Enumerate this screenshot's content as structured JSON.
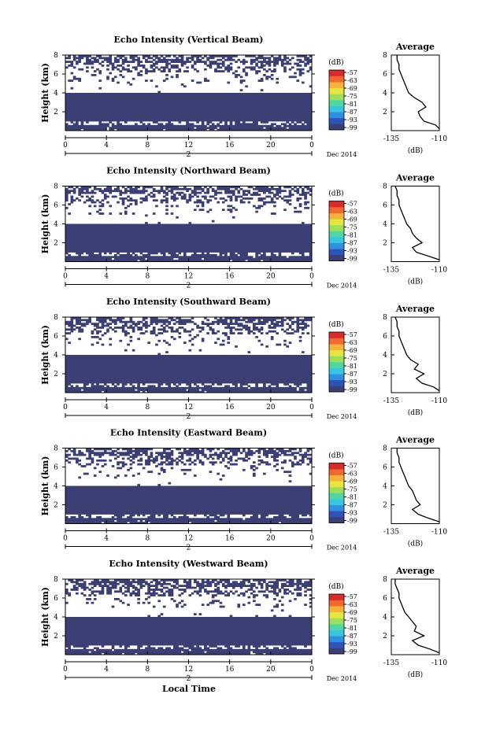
{
  "figure": {
    "xlabel": "Local Time",
    "colorbar_unit": "(dB)",
    "date_label": "Dec 2014",
    "day_label": "2",
    "avg_title": "Average",
    "avg_xlabel": "(dB)"
  },
  "colors": {
    "dominant_fill": "#3b3f74",
    "colormap": [
      "#3b3f74",
      "#2f54b8",
      "#2f8fe0",
      "#35c7e0",
      "#4fd6a3",
      "#9be05a",
      "#e6e640",
      "#f5b23a",
      "#f06a2f",
      "#d92b2b"
    ]
  },
  "chart_data": [
    {
      "type": "heatmap",
      "title": "Echo Intensity (Vertical Beam)",
      "ylabel": "Height (km)",
      "xlim": [
        0,
        24
      ],
      "ylim": [
        0,
        8
      ],
      "xticks": [
        "0",
        "4",
        "8",
        "12",
        "16",
        "20",
        "0"
      ],
      "yticks": [
        "2",
        "4",
        "6",
        "8"
      ],
      "colorbar": {
        "ticks": [
          "-57",
          "-63",
          "-69",
          "-75",
          "-81",
          "-87",
          "-93",
          "-99"
        ],
        "range": [
          -99,
          -57
        ]
      },
      "average_profile": {
        "xlim": [
          -135,
          -110
        ],
        "xticks": [
          "-135",
          "-110"
        ],
        "yticks": [
          "2",
          "4",
          "6",
          "8"
        ],
        "height_km": [
          0.2,
          0.6,
          1.0,
          1.5,
          2.0,
          2.5,
          3.0,
          3.5,
          4.0,
          4.5,
          5.0,
          5.5,
          6.0,
          6.5,
          7.0,
          7.5,
          8.0
        ],
        "intensity_db": [
          -110,
          -112,
          -118,
          -120,
          -121,
          -117,
          -119,
          -123,
          -126,
          -127,
          -128,
          -129,
          -130,
          -131,
          -131,
          -132,
          -132
        ]
      }
    },
    {
      "type": "heatmap",
      "title": "Echo Intensity (Northward Beam)",
      "ylabel": "Height (km)",
      "xlim": [
        0,
        24
      ],
      "ylim": [
        0,
        8
      ],
      "xticks": [
        "0",
        "4",
        "8",
        "12",
        "16",
        "20",
        "0"
      ],
      "yticks": [
        "2",
        "4",
        "6",
        "8"
      ],
      "colorbar": {
        "ticks": [
          "-57",
          "-63",
          "-69",
          "-75",
          "-81",
          "-87",
          "-93",
          "-99"
        ],
        "range": [
          -99,
          -57
        ]
      },
      "average_profile": {
        "xlim": [
          -135,
          -110
        ],
        "xticks": [
          "-135",
          "-110"
        ],
        "yticks": [
          "2",
          "4",
          "6",
          "8"
        ],
        "height_km": [
          0.2,
          0.6,
          1.0,
          1.5,
          2.0,
          2.5,
          3.0,
          3.5,
          4.0,
          4.5,
          5.0,
          5.5,
          6.0,
          6.5,
          7.0,
          7.5,
          8.0
        ],
        "intensity_db": [
          -110,
          -116,
          -122,
          -124,
          -119,
          -122,
          -124,
          -125,
          -127,
          -128,
          -129,
          -130,
          -131,
          -131,
          -132,
          -132,
          -133
        ]
      }
    },
    {
      "type": "heatmap",
      "title": "Echo Intensity (Southward Beam)",
      "ylabel": "Height (km)",
      "xlim": [
        0,
        24
      ],
      "ylim": [
        0,
        8
      ],
      "xticks": [
        "0",
        "4",
        "8",
        "12",
        "16",
        "20",
        "0"
      ],
      "yticks": [
        "2",
        "4",
        "6",
        "8"
      ],
      "colorbar": {
        "ticks": [
          "-57",
          "-63",
          "-69",
          "-75",
          "-81",
          "-87",
          "-93",
          "-99"
        ],
        "range": [
          -99,
          -57
        ]
      },
      "average_profile": {
        "xlim": [
          -135,
          -110
        ],
        "xticks": [
          "-135",
          "-110"
        ],
        "yticks": [
          "2",
          "4",
          "6",
          "8"
        ],
        "height_km": [
          0.2,
          0.6,
          1.0,
          1.5,
          2.0,
          2.5,
          3.0,
          3.5,
          4.0,
          4.5,
          5.0,
          5.5,
          6.0,
          6.5,
          7.0,
          7.5,
          8.0
        ],
        "intensity_db": [
          -110,
          -113,
          -119,
          -122,
          -118,
          -123,
          -121,
          -125,
          -127,
          -128,
          -129,
          -130,
          -131,
          -131,
          -132,
          -132,
          -133
        ]
      }
    },
    {
      "type": "heatmap",
      "title": "Echo Intensity (Eastward Beam)",
      "ylabel": "Height (km)",
      "xlim": [
        0,
        24
      ],
      "ylim": [
        0,
        8
      ],
      "xticks": [
        "0",
        "4",
        "8",
        "12",
        "16",
        "20",
        "0"
      ],
      "yticks": [
        "2",
        "4",
        "6",
        "8"
      ],
      "colorbar": {
        "ticks": [
          "-57",
          "-63",
          "-69",
          "-75",
          "-81",
          "-87",
          "-93",
          "-99"
        ],
        "range": [
          -99,
          -57
        ]
      },
      "average_profile": {
        "xlim": [
          -135,
          -110
        ],
        "xticks": [
          "-135",
          "-110"
        ],
        "yticks": [
          "2",
          "4",
          "6",
          "8"
        ],
        "height_km": [
          0.2,
          0.6,
          1.0,
          1.5,
          2.0,
          2.5,
          3.0,
          3.5,
          4.0,
          4.5,
          5.0,
          5.5,
          6.0,
          6.5,
          7.0,
          7.5,
          8.0
        ],
        "intensity_db": [
          -110,
          -116,
          -121,
          -124,
          -120,
          -122,
          -123,
          -124,
          -126,
          -127,
          -128,
          -129,
          -130,
          -131,
          -131,
          -132,
          -132
        ]
      }
    },
    {
      "type": "heatmap",
      "title": "Echo Intensity (Westward Beam)",
      "ylabel": "Height (km)",
      "xlim": [
        0,
        24
      ],
      "ylim": [
        0,
        8
      ],
      "xticks": [
        "0",
        "4",
        "8",
        "12",
        "16",
        "20",
        "0"
      ],
      "yticks": [
        "2",
        "4",
        "6",
        "8"
      ],
      "colorbar": {
        "ticks": [
          "-57",
          "-63",
          "-69",
          "-75",
          "-81",
          "-87",
          "-93",
          "-99"
        ],
        "range": [
          -99,
          -57
        ]
      },
      "average_profile": {
        "xlim": [
          -135,
          -110
        ],
        "xticks": [
          "-135",
          "-110"
        ],
        "yticks": [
          "2",
          "4",
          "6",
          "8"
        ],
        "height_km": [
          0.2,
          0.6,
          1.0,
          1.5,
          2.0,
          2.5,
          3.0,
          3.5,
          4.0,
          4.5,
          5.0,
          5.5,
          6.0,
          6.5,
          7.0,
          7.5,
          8.0
        ],
        "intensity_db": [
          -110,
          -115,
          -121,
          -124,
          -118,
          -123,
          -122,
          -124,
          -126,
          -128,
          -129,
          -130,
          -131,
          -131,
          -132,
          -133,
          -133
        ]
      }
    }
  ]
}
